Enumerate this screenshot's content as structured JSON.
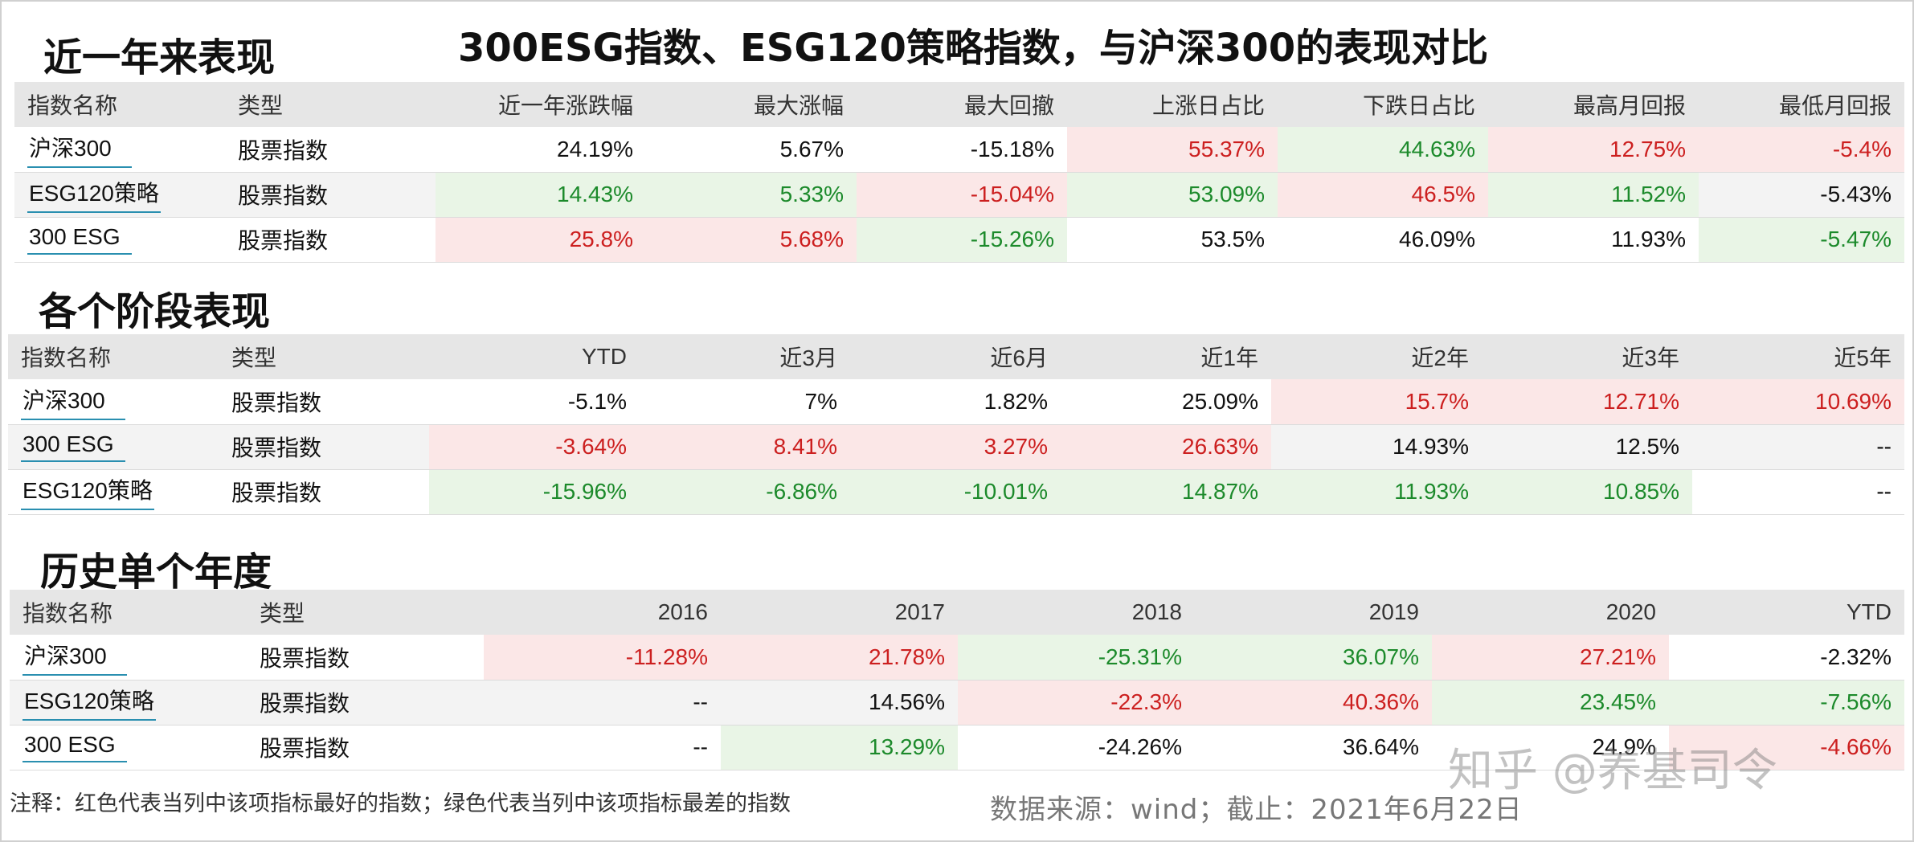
{
  "main_title": "300ESG指数、ESG120策略指数，与沪深300的表现对比",
  "sections": {
    "s1": {
      "title": "近一年来表现",
      "headers": [
        "指数名称",
        "类型",
        "近一年涨跌幅",
        "最大涨幅",
        "最大回撤",
        "上涨日占比",
        "下跌日占比",
        "最高月回报",
        "最低月回报"
      ],
      "rows": [
        {
          "name": "沪深300",
          "type": "股票指数",
          "cells": [
            {
              "v": "24.19%",
              "c": ""
            },
            {
              "v": "5.67%",
              "c": ""
            },
            {
              "v": "-15.18%",
              "c": ""
            },
            {
              "v": "55.37%",
              "c": "red"
            },
            {
              "v": "44.63%",
              "c": "green"
            },
            {
              "v": "12.75%",
              "c": "red"
            },
            {
              "v": "-5.4%",
              "c": "red"
            }
          ]
        },
        {
          "name": "ESG120策略",
          "type": "股票指数",
          "cells": [
            {
              "v": "14.43%",
              "c": "green"
            },
            {
              "v": "5.33%",
              "c": "green"
            },
            {
              "v": "-15.04%",
              "c": "red"
            },
            {
              "v": "53.09%",
              "c": "green"
            },
            {
              "v": "46.5%",
              "c": "red"
            },
            {
              "v": "11.52%",
              "c": "green"
            },
            {
              "v": "-5.43%",
              "c": ""
            }
          ]
        },
        {
          "name": "300 ESG",
          "type": "股票指数",
          "cells": [
            {
              "v": "25.8%",
              "c": "red"
            },
            {
              "v": "5.68%",
              "c": "red"
            },
            {
              "v": "-15.26%",
              "c": "green"
            },
            {
              "v": "53.5%",
              "c": ""
            },
            {
              "v": "46.09%",
              "c": ""
            },
            {
              "v": "11.93%",
              "c": ""
            },
            {
              "v": "-5.47%",
              "c": "green"
            }
          ]
        }
      ]
    },
    "s2": {
      "title": "各个阶段表现",
      "headers": [
        "指数名称",
        "类型",
        "YTD",
        "近3月",
        "近6月",
        "近1年",
        "近2年",
        "近3年",
        "近5年"
      ],
      "rows": [
        {
          "name": "沪深300",
          "type": "股票指数",
          "cells": [
            {
              "v": "-5.1%",
              "c": ""
            },
            {
              "v": "7%",
              "c": ""
            },
            {
              "v": "1.82%",
              "c": ""
            },
            {
              "v": "25.09%",
              "c": ""
            },
            {
              "v": "15.7%",
              "c": "red"
            },
            {
              "v": "12.71%",
              "c": "red"
            },
            {
              "v": "10.69%",
              "c": "red"
            }
          ]
        },
        {
          "name": "300 ESG",
          "type": "股票指数",
          "cells": [
            {
              "v": "-3.64%",
              "c": "red"
            },
            {
              "v": "8.41%",
              "c": "red"
            },
            {
              "v": "3.27%",
              "c": "red"
            },
            {
              "v": "26.63%",
              "c": "red"
            },
            {
              "v": "14.93%",
              "c": ""
            },
            {
              "v": "12.5%",
              "c": ""
            },
            {
              "v": "--",
              "c": ""
            }
          ]
        },
        {
          "name": "ESG120策略",
          "type": "股票指数",
          "cells": [
            {
              "v": "-15.96%",
              "c": "green"
            },
            {
              "v": "-6.86%",
              "c": "green"
            },
            {
              "v": "-10.01%",
              "c": "green"
            },
            {
              "v": "14.87%",
              "c": "green"
            },
            {
              "v": "11.93%",
              "c": "green"
            },
            {
              "v": "10.85%",
              "c": "green"
            },
            {
              "v": "--",
              "c": ""
            }
          ]
        }
      ]
    },
    "s3": {
      "title": "历史单个年度",
      "headers": [
        "指数名称",
        "类型",
        "2016",
        "2017",
        "2018",
        "2019",
        "2020",
        "YTD"
      ],
      "rows": [
        {
          "name": "沪深300",
          "type": "股票指数",
          "cells": [
            {
              "v": "-11.28%",
              "c": "red"
            },
            {
              "v": "21.78%",
              "c": "red"
            },
            {
              "v": "-25.31%",
              "c": "green"
            },
            {
              "v": "36.07%",
              "c": "green"
            },
            {
              "v": "27.21%",
              "c": "red"
            },
            {
              "v": "-2.32%",
              "c": ""
            }
          ]
        },
        {
          "name": "ESG120策略",
          "type": "股票指数",
          "cells": [
            {
              "v": "--",
              "c": ""
            },
            {
              "v": "14.56%",
              "c": ""
            },
            {
              "v": "-22.3%",
              "c": "red"
            },
            {
              "v": "40.36%",
              "c": "red"
            },
            {
              "v": "23.45%",
              "c": "green"
            },
            {
              "v": "-7.56%",
              "c": "green"
            }
          ]
        },
        {
          "name": "300 ESG",
          "type": "股票指数",
          "cells": [
            {
              "v": "--",
              "c": ""
            },
            {
              "v": "13.29%",
              "c": "green"
            },
            {
              "v": "-24.26%",
              "c": ""
            },
            {
              "v": "36.64%",
              "c": ""
            },
            {
              "v": "24.9%",
              "c": ""
            },
            {
              "v": "-4.66%",
              "c": "red"
            }
          ]
        }
      ]
    }
  },
  "note": "注释：红色代表当列中该项指标最好的指数；绿色代表当列中该项指标最差的指数",
  "source": "数据来源：wind；截止：2021年6月22日",
  "watermark": "知乎 @养基司令",
  "colors": {
    "best_bg": "#fbe7e7",
    "best_text": "#cc1f1f",
    "worst_bg": "#e9f5e6",
    "worst_text": "#1c8a2b",
    "header_bg": "#e6e6e6"
  }
}
